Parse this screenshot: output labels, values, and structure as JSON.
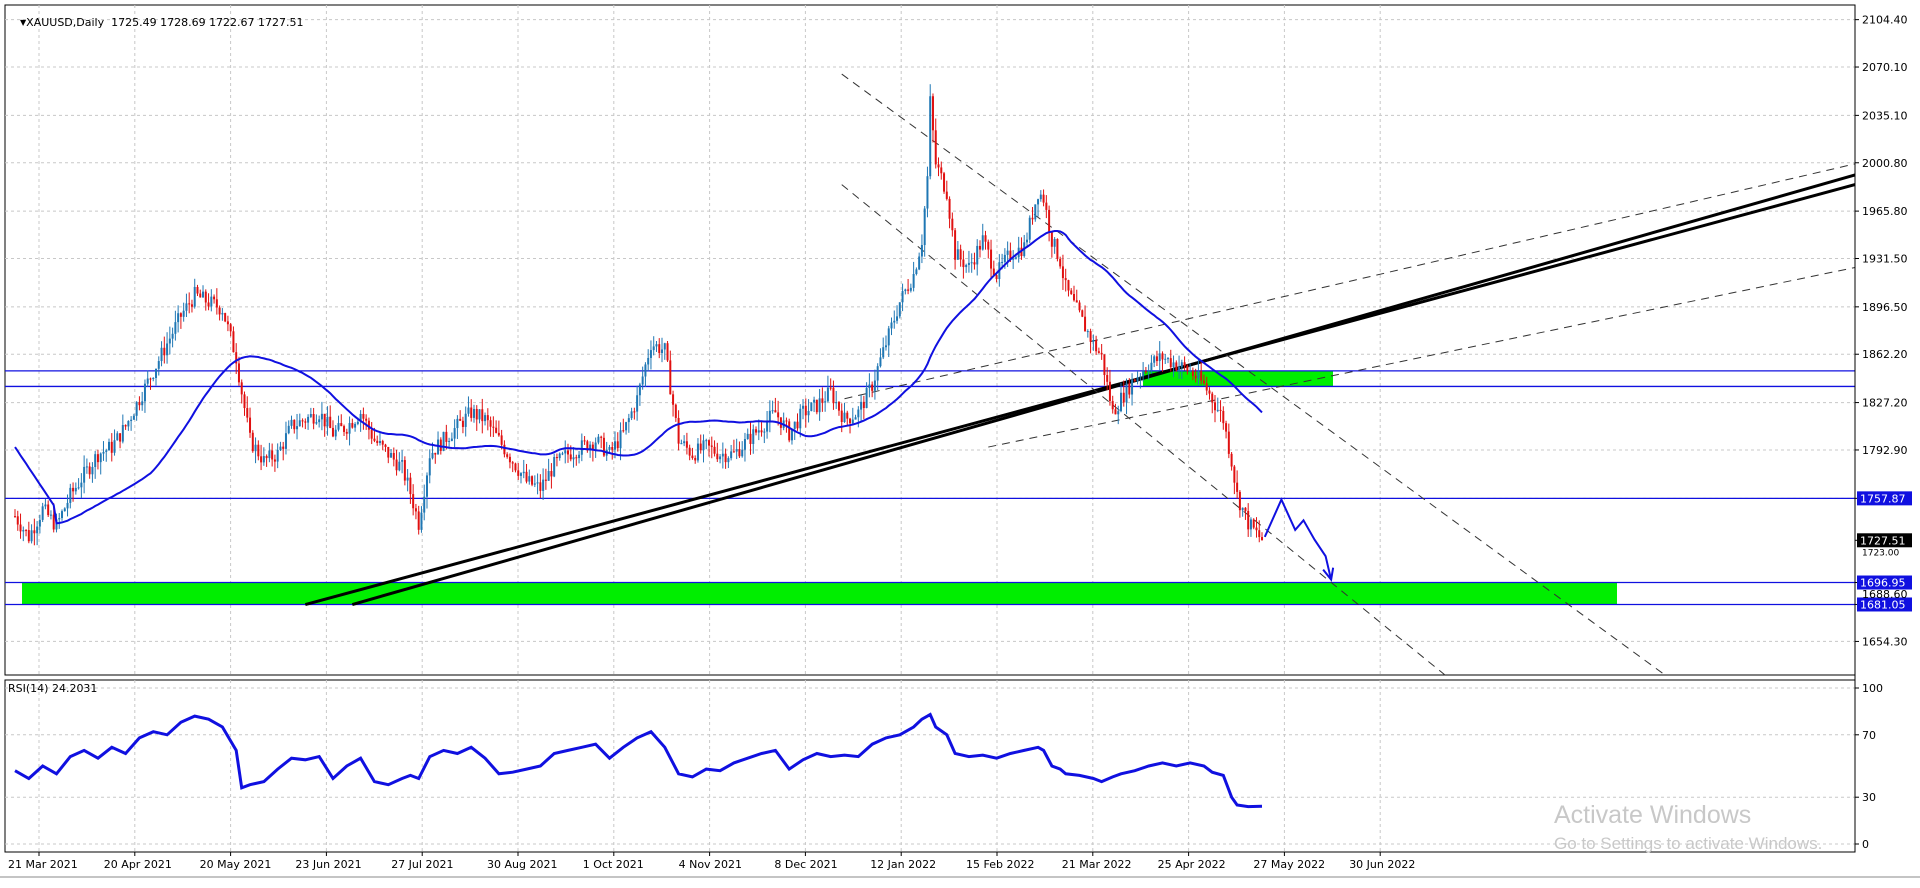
{
  "header": {
    "symbol_line": "XAUUSD,Daily  1725.49 1728.69 1722.67 1727.51",
    "collapse_icon": "triangle-down-icon"
  },
  "rsi_header": {
    "label": "RSI(14) 24.2031"
  },
  "watermark": {
    "line1": "Activate Windows",
    "line2": "Go to Settings to activate Windows."
  },
  "colors": {
    "bull": "#1f77b4",
    "bear": "#e01010",
    "ma": "#1010e0",
    "hline": "#1010e0",
    "zone": "#00ee00",
    "trend": "#000000",
    "grid": "#c8c8c8",
    "rsi": "#1010e0"
  },
  "chart_data": [
    {
      "type": "line",
      "title": "XAUUSD,Daily",
      "ohlc_last": {
        "open": 1725.49,
        "high": 1728.69,
        "low": 1722.67,
        "close": 1727.51
      },
      "ylim": [
        1630,
        2115
      ],
      "y_ticks": [
        2104.4,
        2070.1,
        2035.1,
        2000.8,
        1965.8,
        1931.5,
        1896.5,
        1862.2,
        1827.2,
        1792.9,
        1757.87,
        1727.51,
        1696.95,
        1681.05,
        1654.3
      ],
      "y_tick_labels": [
        "2104.40",
        "2070.10",
        "2035.10",
        "2000.80",
        "1965.80",
        "1931.50",
        "1896.50",
        "1862.20",
        "1827.20",
        "1792.90",
        "1757.87",
        "1727.51",
        "1696.95",
        "1681.05",
        "1654.30"
      ],
      "overlapped_tick_labels": [
        "1723.00",
        "1688.60"
      ],
      "x_tick_labels": [
        "21 Mar 2021",
        "20 Apr 2021",
        "20 May 2021",
        "23 Jun 2021",
        "27 Jul 2021",
        "30 Aug 2021",
        "1 Oct 2021",
        "4 Nov 2021",
        "8 Dec 2021",
        "12 Jan 2022",
        "15 Feb 2022",
        "21 Mar 2022",
        "25 Apr 2022",
        "27 May 2022",
        "30 Jun 2022"
      ],
      "highlighted_levels": [
        1850.14,
        1838.87,
        1757.87,
        1727.51,
        1696.95,
        1681.05
      ],
      "price_anchors": [
        [
          0,
          1745
        ],
        [
          5,
          1730
        ],
        [
          10,
          1750
        ],
        [
          15,
          1738
        ],
        [
          20,
          1760
        ],
        [
          25,
          1775
        ],
        [
          30,
          1790
        ],
        [
          35,
          1795
        ],
        [
          40,
          1810
        ],
        [
          45,
          1830
        ],
        [
          50,
          1850
        ],
        [
          55,
          1870
        ],
        [
          60,
          1890
        ],
        [
          65,
          1905
        ],
        [
          70,
          1900
        ],
        [
          75,
          1895
        ],
        [
          80,
          1860
        ],
        [
          82,
          1835
        ],
        [
          85,
          1800
        ],
        [
          90,
          1785
        ],
        [
          95,
          1790
        ],
        [
          100,
          1810
        ],
        [
          105,
          1815
        ],
        [
          110,
          1820
        ],
        [
          115,
          1805
        ],
        [
          120,
          1810
        ],
        [
          125,
          1820
        ],
        [
          130,
          1800
        ],
        [
          135,
          1790
        ],
        [
          140,
          1780
        ],
        [
          143,
          1762
        ],
        [
          146,
          1740
        ],
        [
          150,
          1790
        ],
        [
          155,
          1800
        ],
        [
          160,
          1810
        ],
        [
          165,
          1820
        ],
        [
          170,
          1815
        ],
        [
          175,
          1800
        ],
        [
          180,
          1785
        ],
        [
          185,
          1770
        ],
        [
          190,
          1765
        ],
        [
          195,
          1782
        ],
        [
          200,
          1790
        ],
        [
          205,
          1795
        ],
        [
          210,
          1800
        ],
        [
          215,
          1790
        ],
        [
          220,
          1805
        ],
        [
          225,
          1830
        ],
        [
          230,
          1870
        ],
        [
          235,
          1865
        ],
        [
          240,
          1800
        ],
        [
          245,
          1790
        ],
        [
          250,
          1795
        ],
        [
          255,
          1790
        ],
        [
          260,
          1790
        ],
        [
          265,
          1800
        ],
        [
          270,
          1810
        ],
        [
          275,
          1820
        ],
        [
          280,
          1805
        ],
        [
          285,
          1820
        ],
        [
          290,
          1825
        ],
        [
          295,
          1835
        ],
        [
          300,
          1815
        ],
        [
          305,
          1820
        ],
        [
          310,
          1840
        ],
        [
          315,
          1870
        ],
        [
          320,
          1900
        ],
        [
          325,
          1920
        ],
        [
          328,
          1945
        ],
        [
          330,
          1990
        ],
        [
          331,
          2045
        ],
        [
          333,
          2000
        ],
        [
          337,
          1980
        ],
        [
          340,
          1935
        ],
        [
          345,
          1925
        ],
        [
          350,
          1945
        ],
        [
          355,
          1920
        ],
        [
          360,
          1935
        ],
        [
          365,
          1940
        ],
        [
          370,
          1980
        ],
        [
          372,
          1975
        ],
        [
          375,
          1945
        ],
        [
          378,
          1930
        ],
        [
          380,
          1910
        ],
        [
          385,
          1890
        ],
        [
          390,
          1870
        ],
        [
          393,
          1860
        ],
        [
          397,
          1820
        ],
        [
          400,
          1830
        ],
        [
          405,
          1845
        ],
        [
          410,
          1855
        ],
        [
          415,
          1860
        ],
        [
          420,
          1855
        ],
        [
          425,
          1850
        ],
        [
          430,
          1840
        ],
        [
          433,
          1830
        ],
        [
          437,
          1815
        ],
        [
          440,
          1785
        ],
        [
          442,
          1760
        ],
        [
          446,
          1740
        ],
        [
          451,
          1727.51
        ]
      ],
      "projection_path": [
        [
          452,
          1730
        ],
        [
          458,
          1757
        ],
        [
          463,
          1735
        ],
        [
          466,
          1742
        ],
        [
          470,
          1728
        ],
        [
          474,
          1716
        ],
        [
          476,
          1699
        ]
      ]
    },
    {
      "type": "line",
      "title": "RSI(14) 24.2031",
      "ylim": [
        0,
        100
      ],
      "y_ticks": [
        100,
        70,
        30,
        0
      ],
      "y_tick_labels": [
        "100",
        "70",
        "30",
        "0"
      ],
      "x": [
        0,
        5,
        10,
        15,
        20,
        25,
        30,
        35,
        40,
        45,
        50,
        55,
        60,
        65,
        70,
        75,
        80,
        82,
        85,
        90,
        95,
        100,
        105,
        110,
        115,
        120,
        125,
        130,
        135,
        140,
        143,
        146,
        150,
        155,
        160,
        165,
        170,
        175,
        180,
        185,
        190,
        195,
        200,
        205,
        210,
        215,
        220,
        225,
        230,
        235,
        240,
        245,
        250,
        255,
        260,
        265,
        270,
        275,
        280,
        285,
        290,
        295,
        300,
        305,
        310,
        315,
        320,
        325,
        328,
        330,
        331,
        333,
        337,
        340,
        345,
        350,
        355,
        360,
        365,
        370,
        372,
        375,
        378,
        380,
        385,
        390,
        393,
        397,
        400,
        405,
        410,
        415,
        420,
        425,
        430,
        433,
        437,
        440,
        442,
        446,
        451
      ],
      "values": [
        47,
        42,
        50,
        45,
        56,
        60,
        55,
        62,
        58,
        68,
        72,
        70,
        78,
        82,
        80,
        75,
        60,
        36,
        38,
        40,
        48,
        55,
        54,
        56,
        42,
        50,
        55,
        40,
        38,
        42,
        44,
        42,
        56,
        60,
        58,
        62,
        55,
        45,
        46,
        48,
        50,
        58,
        60,
        62,
        64,
        55,
        62,
        68,
        72,
        62,
        45,
        43,
        48,
        47,
        52,
        55,
        58,
        60,
        48,
        54,
        58,
        56,
        57,
        56,
        64,
        68,
        70,
        75,
        80,
        82,
        83,
        75,
        70,
        58,
        56,
        57,
        55,
        58,
        60,
        62,
        60,
        50,
        48,
        45,
        44,
        42,
        40,
        43,
        45,
        47,
        50,
        52,
        50,
        52,
        50,
        46,
        44,
        30,
        25,
        24,
        24.2031
      ]
    }
  ]
}
